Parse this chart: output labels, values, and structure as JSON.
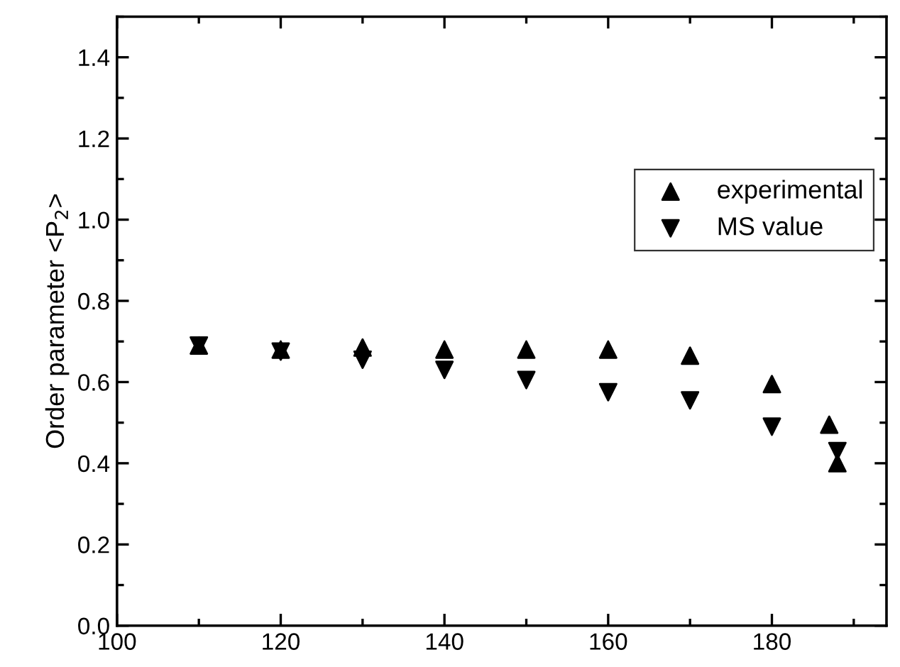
{
  "chart_data": {
    "type": "scatter",
    "ylabel": "Order parameter <P$_{2}$>",
    "xlim": [
      100,
      194
    ],
    "xticks": [
      100,
      120,
      140,
      160,
      180
    ],
    "ylim": [
      0,
      1.5
    ],
    "yticks": [
      {
        "value": 0,
        "label": "0.0"
      },
      0.2,
      0.4,
      0.6,
      0.8,
      {
        "value": 1,
        "label": "1.0"
      },
      1.2,
      1.4
    ],
    "legend": "top right",
    "series": [
      {
        "name": "experimental",
        "color": "#000000",
        "marker": "triangle",
        "x": [
          110,
          120,
          130,
          140,
          150,
          160,
          170,
          180,
          187,
          188
        ],
        "values": [
          0.69,
          0.68,
          0.685,
          0.68,
          0.68,
          0.68,
          0.665,
          0.595,
          0.495,
          0.4
        ]
      },
      {
        "name": "MS value",
        "color": "#000000",
        "marker": "triangle_down",
        "x": [
          110,
          120,
          130,
          140,
          150,
          160,
          170,
          180,
          188
        ],
        "values": [
          0.69,
          0.675,
          0.655,
          0.63,
          0.605,
          0.575,
          0.555,
          0.49,
          0.43
        ]
      }
    ]
  }
}
